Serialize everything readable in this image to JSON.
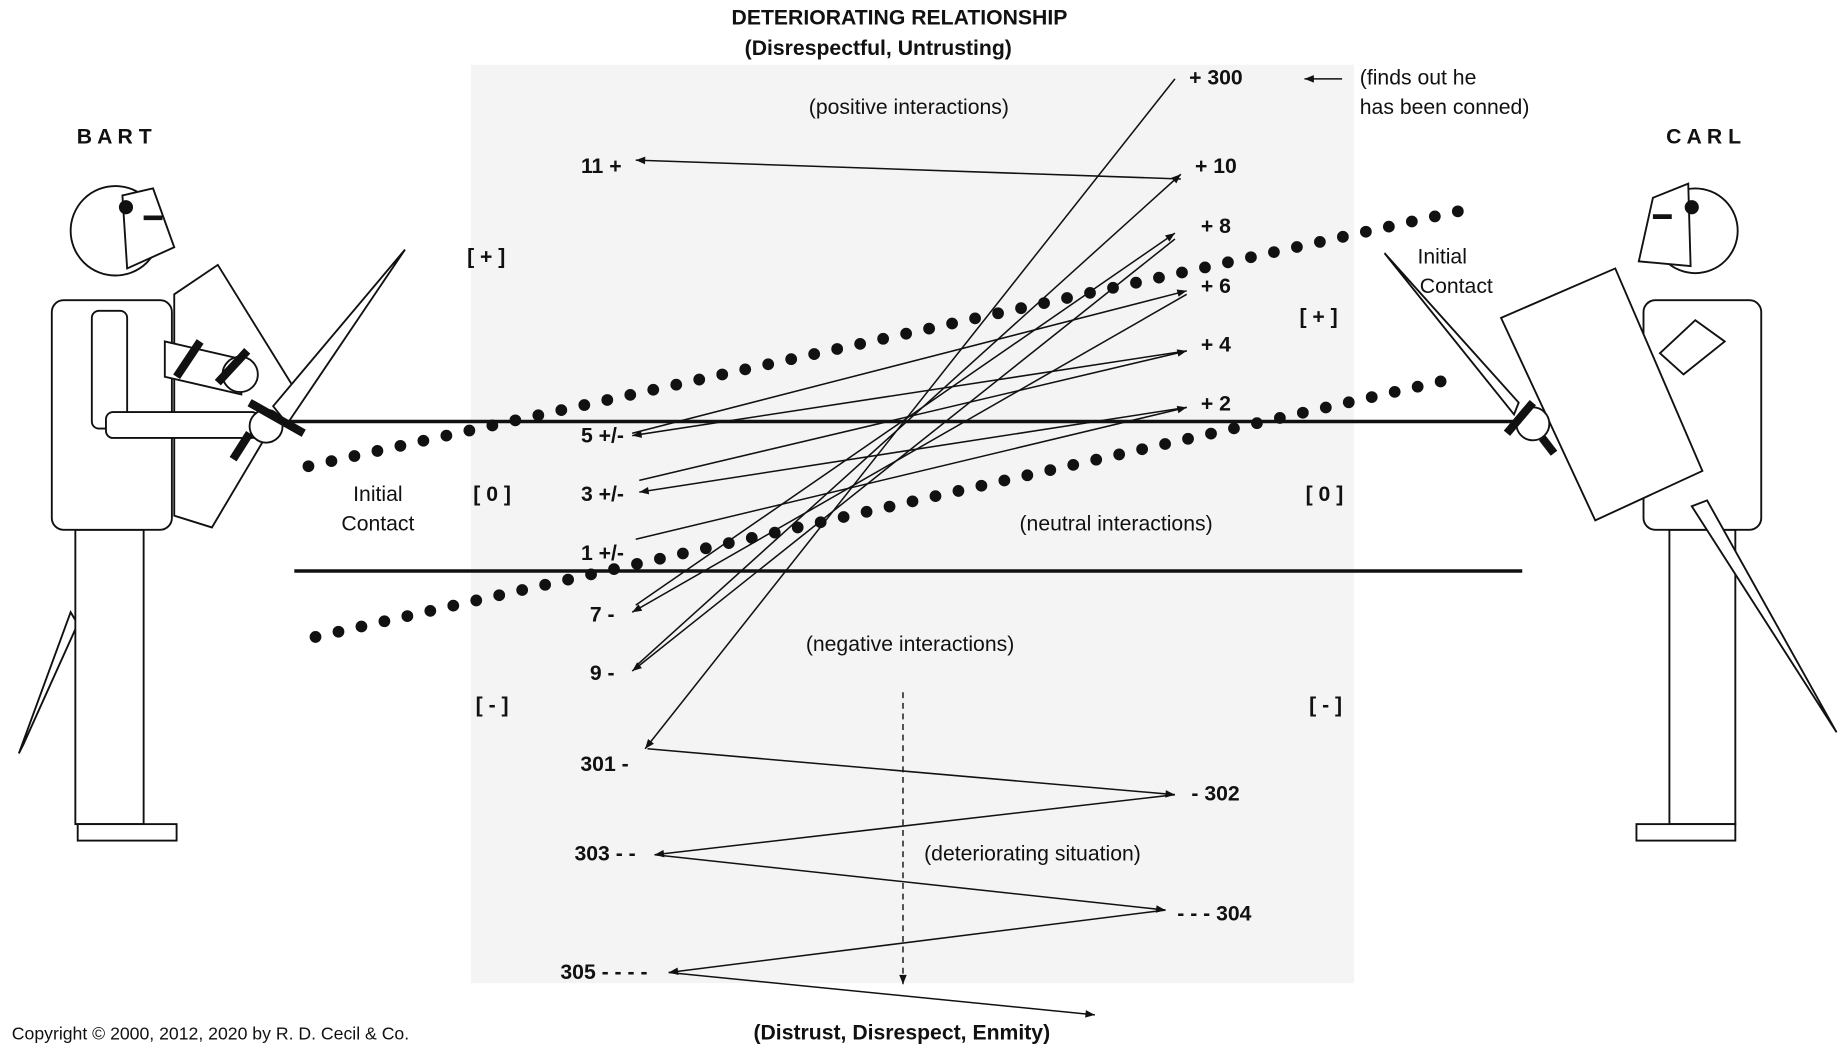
{
  "header": {
    "title": "DETERIORATING  RELATIONSHIP",
    "subtitle": "(Disrespectful, Untrusting)"
  },
  "footer": {
    "title": "(Distrust, Disrespect, Enmity)",
    "copyright": "Copyright © 2000, 2012, 2020 by R. D. Cecil & Co."
  },
  "people": {
    "left": "B A R T",
    "right": "C A R L"
  },
  "zones": {
    "positive": "(positive interactions)",
    "neutral": "(neutral interactions)",
    "negative": "(negative interactions)",
    "deteriorating": "(deteriorating situation)"
  },
  "levels": {
    "left_plus": "[ + ]",
    "right_plus": "[ + ]",
    "left_zero": "[ 0 ]",
    "right_zero": "[ 0 ]",
    "left_minus": "[ - ]",
    "right_minus": "[ - ]"
  },
  "initial_contact": {
    "left": [
      "Initial",
      "Contact"
    ],
    "right": [
      "Initial",
      "Contact"
    ]
  },
  "note": [
    "(finds out he",
    "has been conned)"
  ],
  "nodes": {
    "n1": "1  +/-",
    "n2": "+  2",
    "n3": "3  +/-",
    "n4": "+  4",
    "n5": "5  +/-",
    "n6": "+  6",
    "n7": "7  -",
    "n8": "+  8",
    "n9": "9  -",
    "n10": "+  10",
    "n11": "11  +",
    "n300": "+  300",
    "n301": "301  -",
    "n302": "-  302",
    "n303": "303  - -",
    "n304": "- - -  304",
    "n305": "305  - - - -"
  }
}
